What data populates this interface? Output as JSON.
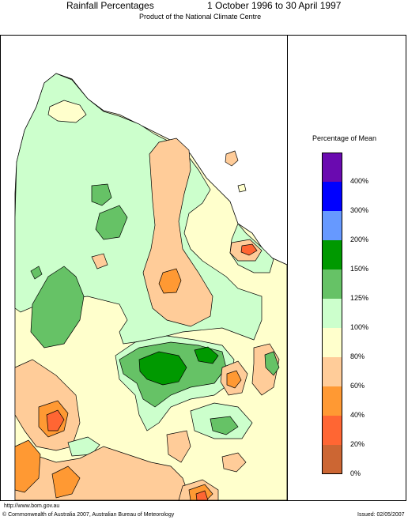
{
  "header": {
    "title": "Rainfall Percentages",
    "period": "1 October 1996 to 30 April 1997",
    "subtitle": "Product of the National Climate Centre"
  },
  "legend": {
    "title": "Percentage of Mean",
    "bins": [
      {
        "color": "#6a0ab0",
        "label": "400%"
      },
      {
        "color": "#0000ff",
        "label": "300%"
      },
      {
        "color": "#6699ff",
        "label": "200%"
      },
      {
        "color": "#009900",
        "label": "150%"
      },
      {
        "color": "#66c266",
        "label": "125%"
      },
      {
        "color": "#ccffcc",
        "label": "100%"
      },
      {
        "color": "#ffffcc",
        "label": "80%"
      },
      {
        "color": "#ffcc99",
        "label": "60%"
      },
      {
        "color": "#ff9933",
        "label": "40%"
      },
      {
        "color": "#ff6633",
        "label": "20%"
      },
      {
        "color": "#cc6633",
        "label": "0%"
      }
    ]
  },
  "footer": {
    "url": "http://www.bom.gov.au",
    "copyright": "© Commonwealth of Australia 2007, Australian Bureau of Meteorology",
    "issued": "Issued: 02/05/2007"
  }
}
